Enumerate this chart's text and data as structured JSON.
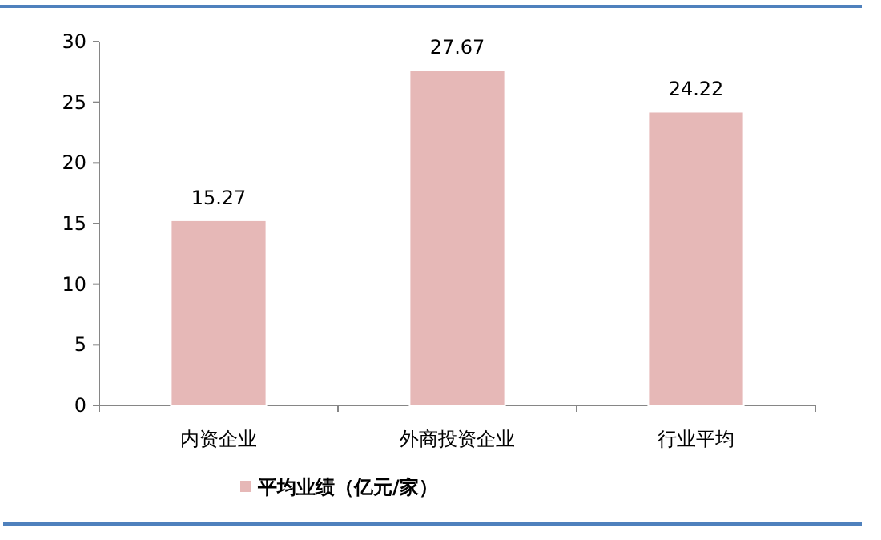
{
  "chart_data": {
    "type": "bar",
    "categories": [
      "内资企业",
      "外商投资企业",
      "行业平均"
    ],
    "series": [
      {
        "name": "平均业绩（亿元/家）",
        "color": "#e6b8b7",
        "values": [
          15.27,
          27.67,
          24.22
        ]
      }
    ],
    "ylim": [
      0,
      30
    ],
    "yticks": [
      0,
      5,
      10,
      15,
      20,
      25,
      30
    ],
    "data_labels": true,
    "legend": "bottom"
  }
}
